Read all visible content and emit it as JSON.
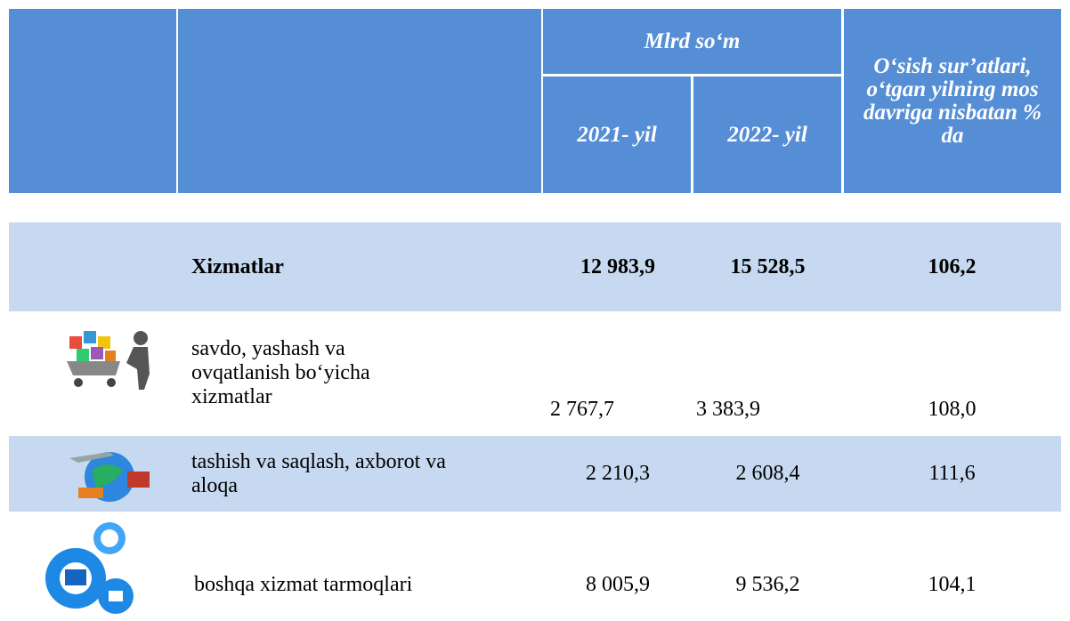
{
  "header": {
    "group": "Mlrd so‘m",
    "year1": "2021- yil",
    "year2": "2022- yil",
    "growth": "O‘sish sur’atlari, o‘tgan yilning mos davriga nisbatan % da"
  },
  "table": {
    "rows": [
      [
        "Xizmatlar",
        "12 983,9",
        "15 528,5",
        "106,2"
      ],
      [
        "savdo, yashash va ovqatlanish bo‘yicha xizmatlar",
        "2 767,7",
        "3 383,9",
        "108,0"
      ],
      [
        "tashish va saqlash, axborot va aloqa",
        "2 210,3",
        "2 608,4",
        "111,6"
      ],
      [
        "boshqa xizmat tarmoqlari",
        "8 005,9",
        "9 536,2",
        "104,1"
      ]
    ]
  }
}
